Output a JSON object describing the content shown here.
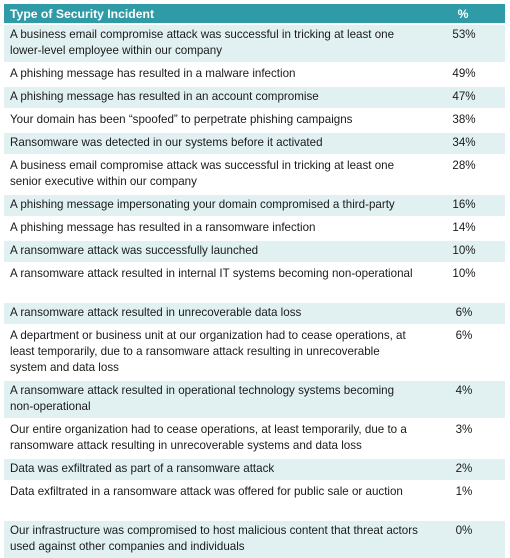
{
  "table": {
    "headers": {
      "incident": "Type of Security Incident",
      "percent": "%"
    },
    "rows": [
      {
        "incident": "A business email compromise attack was successful in tricking at least one lower-level employee within our company",
        "percent": "53%",
        "lines": 2
      },
      {
        "incident": "A phishing message has resulted in a malware infection",
        "percent": "49%",
        "lines": 1
      },
      {
        "incident": "A phishing message has resulted in an account compromise",
        "percent": "47%",
        "lines": 1
      },
      {
        "incident": "Your domain has been “spoofed” to perpetrate phishing campaigns",
        "percent": "38%",
        "lines": 1
      },
      {
        "incident": "Ransomware was detected in our systems before it activated",
        "percent": "34%",
        "lines": 1
      },
      {
        "incident": "A business email compromise attack was successful in tricking at least one senior executive within our company",
        "percent": "28%",
        "lines": 2
      },
      {
        "incident": "A phishing message impersonating your domain compromised a third-party",
        "percent": "16%",
        "lines": 1
      },
      {
        "incident": "A phishing message has resulted in a ransomware infection",
        "percent": "14%",
        "lines": 1
      },
      {
        "incident": "A ransomware attack was successfully launched",
        "percent": "10%",
        "lines": 1
      },
      {
        "incident": "A ransomware attack resulted in internal IT systems becoming non-operational",
        "percent": "10%",
        "lines": 2
      },
      {
        "incident": "A ransomware attack resulted in unrecoverable data loss",
        "percent": "6%",
        "lines": 1
      },
      {
        "incident": "A department or business unit at our organization had to cease operations, at least temporarily, due to a ransomware attack resulting in unrecoverable system and data loss",
        "percent": "6%",
        "lines": 3
      },
      {
        "incident": "A ransomware attack resulted in operational technology systems becoming non-operational",
        "percent": "4%",
        "lines": 2
      },
      {
        "incident": "Our entire organization had to cease operations, at least temporarily, due to a ransomware attack resulting in unrecoverable systems and data loss",
        "percent": "3%",
        "lines": 2
      },
      {
        "incident": "Data was exfiltrated as part of a ransomware attack",
        "percent": "2%",
        "lines": 1
      },
      {
        "incident": "Data exfiltrated in a ransomware attack was offered for public sale or auction",
        "percent": "1%",
        "lines": 2
      },
      {
        "incident": "Our infrastructure was compromised to host malicious content that threat actors used against other companies and individuals",
        "percent": "0%",
        "lines": 2
      }
    ]
  }
}
